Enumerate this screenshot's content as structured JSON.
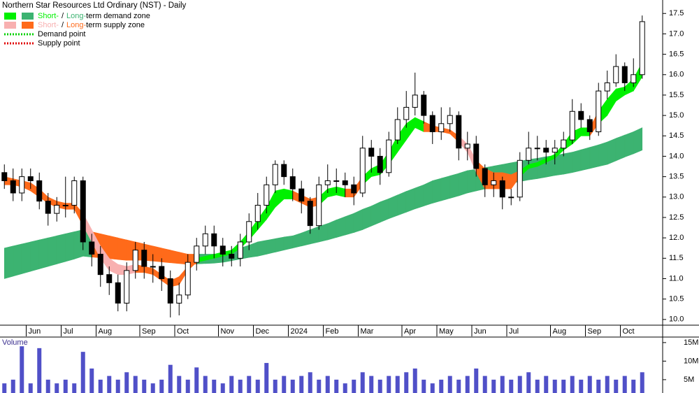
{
  "chart_data": {
    "type": "candlestick",
    "title": "Northern Star Resources Ltd Ordinary (NST) - Daily",
    "categories": [
      null,
      null,
      null,
      "Jun",
      null,
      null,
      null,
      "Jul",
      null,
      null,
      null,
      "Aug",
      null,
      null,
      null,
      null,
      "Sep",
      null,
      null,
      null,
      "Oct",
      null,
      null,
      null,
      null,
      "Nov",
      null,
      null,
      null,
      "Dec",
      null,
      null,
      null,
      "2024",
      null,
      null,
      null,
      "Feb",
      null,
      null,
      null,
      "Mar",
      null,
      null,
      null,
      null,
      "Apr",
      null,
      null,
      null,
      "May",
      null,
      null,
      null,
      "Jun",
      null,
      null,
      null,
      "Jul",
      null,
      null,
      null,
      null,
      "Aug",
      null,
      null,
      null,
      "Sep",
      null,
      null,
      null,
      "Oct",
      null,
      null
    ],
    "open": [
      13.6,
      13.4,
      13.1,
      13.5,
      13.4,
      12.9,
      12.6,
      12.8,
      12.8,
      13.4,
      11.9,
      11.6,
      11.1,
      10.9,
      10.4,
      11.2,
      11.7,
      11.3,
      11.3,
      11.0,
      10.4,
      10.6,
      11.4,
      11.8,
      12.1,
      11.8,
      11.6,
      11.5,
      11.9,
      12.4,
      12.8,
      13.3,
      13.8,
      13.5,
      13.2,
      12.9,
      12.3,
      13.3,
      13.4,
      13.4,
      13.3,
      13.1,
      14.2,
      14.0,
      13.6,
      14.4,
      14.9,
      15.2,
      15.5,
      15.0,
      14.6,
      14.8,
      15.0,
      14.2,
      14.3,
      13.7,
      13.3,
      13.4,
      13.0,
      13.0,
      13.9,
      14.2,
      14.2,
      14.1,
      14.2,
      14.4,
      15.1,
      14.9,
      14.6,
      15.6,
      15.8,
      16.2,
      15.8,
      16.0
    ],
    "high": [
      13.8,
      13.7,
      13.7,
      13.7,
      13.6,
      13.1,
      13.0,
      13.5,
      13.5,
      13.5,
      12.1,
      11.8,
      11.3,
      11.1,
      11.4,
      11.9,
      11.9,
      11.6,
      11.5,
      11.2,
      10.9,
      11.6,
      12.0,
      12.3,
      12.3,
      12.0,
      11.8,
      12.1,
      12.6,
      13.1,
      13.5,
      13.9,
      13.9,
      13.7,
      13.4,
      13.0,
      13.5,
      13.8,
      13.7,
      13.6,
      13.5,
      14.5,
      14.4,
      14.2,
      14.6,
      15.2,
      15.6,
      16.05,
      15.6,
      15.1,
      15.2,
      15.2,
      15.1,
      14.6,
      14.5,
      13.8,
      13.6,
      13.5,
      13.2,
      14.1,
      14.6,
      14.5,
      14.4,
      14.4,
      14.6,
      15.4,
      15.3,
      15.0,
      15.8,
      16.1,
      16.5,
      16.3,
      16.4,
      17.45
    ],
    "low": [
      13.2,
      12.9,
      12.9,
      13.2,
      12.7,
      12.3,
      12.4,
      12.5,
      12.6,
      11.7,
      11.3,
      10.8,
      10.6,
      10.2,
      10.2,
      11.0,
      11.0,
      10.9,
      10.7,
      10.05,
      10.1,
      10.5,
      11.2,
      11.6,
      11.5,
      11.3,
      11.3,
      11.3,
      11.7,
      12.2,
      12.6,
      13.1,
      13.3,
      12.9,
      12.6,
      12.1,
      12.2,
      13.1,
      13.1,
      13.0,
      12.8,
      13.0,
      13.6,
      13.3,
      13.5,
      14.3,
      14.7,
      15.0,
      14.8,
      14.3,
      14.4,
      14.6,
      13.9,
      13.9,
      13.5,
      13.0,
      13.0,
      12.7,
      12.8,
      12.9,
      13.8,
      13.9,
      13.8,
      13.8,
      14.0,
      14.3,
      14.7,
      14.4,
      14.5,
      15.4,
      15.7,
      15.6,
      15.7,
      15.9
    ],
    "close": [
      13.4,
      13.1,
      13.5,
      13.4,
      12.9,
      12.6,
      12.8,
      12.8,
      13.4,
      11.9,
      11.6,
      11.1,
      10.9,
      10.4,
      11.2,
      11.7,
      11.3,
      11.3,
      11.0,
      10.4,
      10.6,
      11.4,
      11.8,
      12.1,
      11.8,
      11.6,
      11.5,
      11.9,
      12.4,
      12.8,
      13.3,
      13.8,
      13.5,
      13.2,
      12.9,
      12.3,
      13.3,
      13.4,
      13.4,
      13.3,
      13.1,
      14.2,
      14.0,
      13.6,
      14.4,
      14.9,
      15.2,
      15.5,
      15.0,
      14.6,
      14.8,
      15.0,
      14.2,
      14.3,
      13.7,
      13.3,
      13.4,
      13.0,
      13.0,
      13.9,
      14.2,
      14.2,
      14.1,
      14.2,
      14.4,
      15.1,
      14.9,
      14.6,
      15.6,
      15.8,
      16.2,
      15.8,
      16.0,
      17.3
    ],
    "ylim": [
      9.86,
      17.83
    ],
    "yticks": [
      {
        "value": 10,
        "label": "10.0"
      },
      10.5,
      {
        "value": 11,
        "label": "11.0"
      },
      11.5,
      {
        "value": 12,
        "label": "12.0"
      },
      12.5,
      {
        "value": 13,
        "label": "13.0"
      },
      13.5,
      {
        "value": 14,
        "label": "14.0"
      },
      14.5,
      {
        "value": 15,
        "label": "15.0"
      },
      15.5,
      {
        "value": 16,
        "label": "16.0"
      },
      16.5,
      {
        "value": 17,
        "label": "17.0"
      },
      17.5
    ],
    "zones": {
      "long": {
        "upper": [
          11.75,
          11.8,
          11.85,
          11.9,
          11.95,
          12.0,
          12.05,
          12.1,
          12.15,
          12.2,
          12.15,
          12.1,
          12.05,
          12.0,
          11.95,
          11.9,
          11.85,
          11.8,
          11.75,
          11.7,
          11.65,
          11.6,
          11.6,
          11.6,
          11.6,
          11.6,
          11.68,
          11.75,
          11.82,
          11.9,
          11.94,
          11.98,
          12.02,
          12.05,
          12.12,
          12.2,
          12.28,
          12.35,
          12.44,
          12.52,
          12.6,
          12.7,
          12.78,
          12.88,
          12.96,
          13.05,
          13.14,
          13.22,
          13.3,
          13.4,
          13.46,
          13.52,
          13.58,
          13.65,
          13.68,
          13.72,
          13.76,
          13.8,
          13.84,
          13.88,
          13.92,
          13.95,
          13.99,
          14.02,
          14.06,
          14.1,
          14.16,
          14.22,
          14.28,
          14.35,
          14.44,
          14.52,
          14.6,
          14.7
        ],
        "lower": [
          11.0,
          11.06,
          11.12,
          11.18,
          11.24,
          11.3,
          11.36,
          11.42,
          11.48,
          11.55,
          11.53,
          11.51,
          11.49,
          11.47,
          11.45,
          11.45,
          11.45,
          11.43,
          11.41,
          11.39,
          11.37,
          11.35,
          11.36,
          11.37,
          11.38,
          11.4,
          11.44,
          11.48,
          11.52,
          11.55,
          11.6,
          11.65,
          11.7,
          11.75,
          11.8,
          11.85,
          11.9,
          11.95,
          12.01,
          12.07,
          12.13,
          12.2,
          12.29,
          12.38,
          12.47,
          12.55,
          12.63,
          12.71,
          12.78,
          12.85,
          12.91,
          12.97,
          13.03,
          13.1,
          13.15,
          13.2,
          13.25,
          13.3,
          13.34,
          13.38,
          13.42,
          13.45,
          13.49,
          13.53,
          13.56,
          13.6,
          13.65,
          13.7,
          13.75,
          13.8,
          13.89,
          13.98,
          14.06,
          14.15
        ],
        "colors": [
          "#3cb371",
          "#3cb371",
          "#3cb371",
          "#3cb371",
          "#3cb371",
          "#3cb371",
          "#3cb371",
          "#3cb371",
          "#3cb371",
          "#3cb371",
          "#ff6a1a",
          "#ff6a1a",
          "#ff6a1a",
          "#ff6a1a",
          "#ff6a1a",
          "#ff6a1a",
          "#ff6a1a",
          "#ff6a1a",
          "#ff6a1a",
          "#ff6a1a",
          "#ff6a1a",
          "#ff6a1a",
          "#3cb371",
          "#3cb371",
          "#3cb371",
          "#3cb371",
          "#3cb371",
          "#3cb371",
          "#3cb371",
          "#3cb371",
          "#3cb371",
          "#3cb371",
          "#3cb371",
          "#3cb371",
          "#3cb371",
          "#3cb371",
          "#3cb371",
          "#3cb371",
          "#3cb371",
          "#3cb371",
          "#3cb371",
          "#3cb371",
          "#3cb371",
          "#3cb371",
          "#3cb371",
          "#3cb371",
          "#3cb371",
          "#3cb371",
          "#3cb371",
          "#3cb371",
          "#3cb371",
          "#3cb371",
          "#3cb371",
          "#3cb371",
          "#3cb371",
          "#3cb371",
          "#3cb371",
          "#3cb371",
          "#3cb371",
          "#3cb371",
          "#3cb371",
          "#3cb371",
          "#3cb371",
          "#3cb371",
          "#3cb371",
          "#3cb371",
          "#3cb371",
          "#3cb371",
          "#3cb371",
          "#3cb371",
          "#3cb371",
          "#3cb371",
          "#3cb371",
          "#3cb371"
        ]
      },
      "short": {
        "upper": [
          13.5,
          13.45,
          13.4,
          13.35,
          13.2,
          13.0,
          12.9,
          12.85,
          12.85,
          12.6,
          12.2,
          11.8,
          11.5,
          11.35,
          11.3,
          11.35,
          11.3,
          11.25,
          11.1,
          10.95,
          11.05,
          11.3,
          11.5,
          11.55,
          11.6,
          11.65,
          11.7,
          11.9,
          12.15,
          12.45,
          12.75,
          13.15,
          13.2,
          13.15,
          13.05,
          12.95,
          13.0,
          13.2,
          13.25,
          13.2,
          13.2,
          13.5,
          13.7,
          13.8,
          14.1,
          14.5,
          14.8,
          14.95,
          14.85,
          14.75,
          14.7,
          14.65,
          14.5,
          14.3,
          13.9,
          13.7,
          13.6,
          13.6,
          13.55,
          13.65,
          13.8,
          13.85,
          13.95,
          14.05,
          14.3,
          14.6,
          14.7,
          14.7,
          15.1,
          15.4,
          15.65,
          15.7,
          15.9,
          16.3
        ],
        "lower": [
          13.3,
          13.3,
          13.25,
          13.15,
          13.0,
          12.85,
          12.75,
          12.7,
          12.7,
          12.3,
          11.9,
          11.5,
          11.2,
          11.1,
          11.1,
          11.15,
          11.15,
          11.1,
          10.95,
          10.8,
          10.85,
          11.2,
          11.4,
          11.45,
          11.5,
          11.55,
          11.6,
          11.75,
          11.95,
          12.2,
          12.45,
          12.75,
          12.95,
          12.95,
          12.85,
          12.75,
          12.8,
          13.0,
          13.05,
          13.0,
          13.0,
          13.3,
          13.5,
          13.55,
          13.8,
          14.1,
          14.4,
          14.7,
          14.6,
          14.6,
          14.6,
          14.55,
          14.35,
          14.1,
          13.6,
          13.2,
          13.2,
          13.2,
          13.2,
          13.5,
          13.7,
          13.75,
          13.85,
          13.95,
          14.15,
          14.3,
          14.5,
          14.5,
          14.8,
          15.0,
          15.35,
          15.5,
          15.6,
          15.95
        ],
        "colors": [
          "#ff6a1a",
          "#ff6a1a",
          "#ff6a1a",
          "#ff6a1a",
          "#ff6a1a",
          "#ff6a1a",
          "#ff6a1a",
          "#ff6a1a",
          "#ff6a1a",
          "#f8b0b0",
          "#f8b0b0",
          "#f8b0b0",
          "#f8b0b0",
          "#f8b0b0",
          "#f8b0b0",
          "#ff6a1a",
          "#ff6a1a",
          "#ff6a1a",
          "#ff6a1a",
          "#ff6a1a",
          "#ff6a1a",
          "#ff6a1a",
          "#00f000",
          "#00f000",
          "#00f000",
          "#00f000",
          "#00f000",
          "#00f000",
          "#00f000",
          "#00f000",
          "#00f000",
          "#00f000",
          "#00f000",
          "#ff6a1a",
          "#ff6a1a",
          "#ff6a1a",
          "#00f000",
          "#00f000",
          "#00f000",
          "#ff6a1a",
          "#ff6a1a",
          "#00f000",
          "#00f000",
          "#00f000",
          "#00f000",
          "#00f000",
          "#00f000",
          "#00f000",
          "#ff6a1a",
          "#ff6a1a",
          "#ff6a1a",
          "#ff6a1a",
          "#f8b0b0",
          "#f8b0b0",
          "#ff6a1a",
          "#ff6a1a",
          "#ff6a1a",
          "#ff6a1a",
          "#ff6a1a",
          "#00f000",
          "#00f000",
          "#00f000",
          "#00f000",
          "#00f000",
          "#00f000",
          "#00f000",
          "#00f000",
          "#ff6a1a",
          "#00f000",
          "#00f000",
          "#00f000",
          "#00f000",
          "#00f000",
          "#00f000"
        ]
      }
    },
    "volume": {
      "label": "Volume",
      "color": "#5050c8",
      "values": [
        4,
        5,
        14,
        4,
        13.5,
        5,
        4,
        5,
        4,
        12.5,
        8,
        5,
        6,
        5,
        7,
        6,
        5,
        4,
        5,
        9,
        6,
        5,
        8.3,
        6,
        5,
        4,
        6,
        5,
        6,
        5,
        9.5,
        5,
        6,
        5,
        6,
        7,
        5,
        6,
        5,
        4,
        5,
        7,
        6,
        5,
        6,
        6,
        7,
        8,
        5,
        4,
        5,
        6,
        5,
        6,
        8,
        6,
        5,
        6,
        5,
        6,
        7,
        5,
        6,
        5,
        5,
        6,
        5,
        6,
        5,
        6,
        5,
        6,
        5,
        7
      ],
      "ylim": [
        1.4,
        16.3
      ],
      "yticks": [
        {
          "value": 5,
          "label": "5M"
        },
        {
          "value": 10,
          "label": "10M"
        },
        {
          "value": 15,
          "label": "15M"
        }
      ]
    }
  },
  "legend": [
    {
      "swatches": [
        "#00f000",
        "#3cb371"
      ],
      "parts": [
        {
          "text": "Short-",
          "color": "#00f000"
        },
        {
          "text": "/"
        },
        {
          "text": "Long-",
          "color": "#3cb371"
        },
        {
          "text": "term demand zone"
        }
      ]
    },
    {
      "swatches": [
        "#f8b0b0",
        "#ff6a1a"
      ],
      "parts": [
        {
          "text": "Short-",
          "color": "#f8b0b0"
        },
        {
          "text": "/"
        },
        {
          "text": "Long-",
          "color": "#ff6a1a"
        },
        {
          "text": "term supply zone"
        }
      ]
    },
    {
      "dotted": "#00d000",
      "parts": [
        {
          "text": "Demand point"
        }
      ]
    },
    {
      "dotted": "#e00000",
      "parts": [
        {
          "text": "Supply point"
        }
      ]
    }
  ]
}
